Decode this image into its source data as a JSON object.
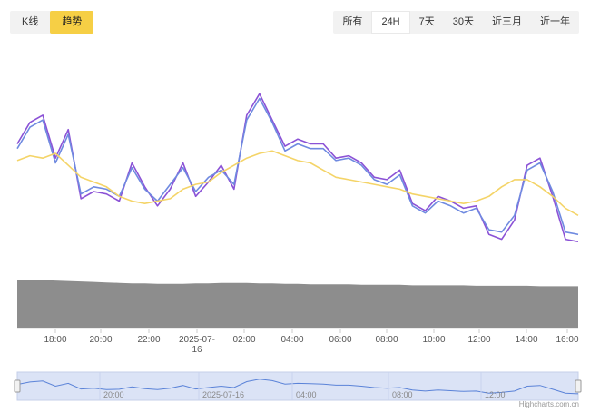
{
  "chart_tabs": [
    "K线",
    "趋势"
  ],
  "active_chart_tab": 1,
  "range_buttons": [
    "所有",
    "24H",
    "7天",
    "30天",
    "近三月",
    "近一年"
  ],
  "active_range": 1,
  "colors": {
    "accent": "#f6cf45",
    "line_purple": "#8b52d6",
    "line_blue": "#6f8ae0",
    "line_yellow": "#f4d468",
    "volume": "#8d8d8d",
    "navigator_fill": "#dbe3f6",
    "navigator_line": "#5b83d8"
  },
  "credit": "Highcharts.com.cn",
  "chart_data": {
    "type": "line",
    "x_axis": {
      "ticks": [
        "18:00",
        "20:00",
        "22:00",
        "2025-07-\n16",
        "02:00",
        "04:00",
        "06:00",
        "08:00",
        "10:00",
        "12:00",
        "14:00",
        "16:00"
      ]
    },
    "series": [
      {
        "color": "#8b52d6",
        "values": [
          62,
          71,
          74,
          56,
          68,
          39,
          42,
          41,
          38,
          54,
          44,
          36,
          43,
          54,
          40,
          46,
          53,
          43,
          74,
          83,
          72,
          61,
          64,
          62,
          62,
          56,
          57,
          54,
          48,
          47,
          51,
          37,
          34,
          40,
          38,
          35,
          36,
          24,
          22,
          30,
          53,
          56,
          40,
          22,
          21
        ]
      },
      {
        "color": "#6f8ae0",
        "values": [
          60,
          69,
          72,
          54,
          66,
          41,
          44,
          43,
          40,
          52,
          43,
          38,
          45,
          52,
          42,
          48,
          51,
          45,
          72,
          81,
          71,
          59,
          62,
          60,
          60,
          55,
          56,
          53,
          47,
          45,
          49,
          36,
          33,
          38,
          36,
          33,
          35,
          26,
          25,
          32,
          51,
          54,
          42,
          25,
          24
        ]
      },
      {
        "color": "#f4d468",
        "values": [
          55,
          57,
          56,
          58,
          53,
          48,
          46,
          44,
          40,
          38,
          37,
          38,
          39,
          43,
          45,
          46,
          50,
          53,
          56,
          58,
          59,
          57,
          55,
          54,
          51,
          48,
          47,
          46,
          45,
          44,
          43,
          41,
          40,
          39,
          38,
          37,
          38,
          40,
          44,
          47,
          47,
          44,
          40,
          35,
          32
        ]
      }
    ]
  },
  "volume_data": {
    "type": "area",
    "values": [
      100,
      100,
      99,
      98,
      97,
      96,
      95,
      94,
      93,
      92,
      92,
      91,
      91,
      91,
      92,
      92,
      93,
      93,
      93,
      92,
      92,
      91,
      91,
      90,
      90,
      90,
      90,
      89,
      89,
      89,
      89,
      88,
      88,
      88,
      88,
      88,
      87,
      87,
      87,
      87,
      87,
      86,
      86,
      86,
      86
    ]
  },
  "navigator": {
    "ticks": [
      "20:00",
      "2025-07-16",
      "04:00",
      "08:00",
      "12:00"
    ],
    "values": [
      55,
      62,
      65,
      50,
      58,
      42,
      44,
      40,
      41,
      48,
      43,
      40,
      44,
      52,
      42,
      46,
      50,
      46,
      63,
      70,
      66,
      56,
      58,
      57,
      56,
      53,
      53,
      50,
      46,
      44,
      46,
      39,
      36,
      39,
      37,
      35,
      36,
      30,
      32,
      36,
      50,
      52,
      41,
      30,
      28
    ]
  }
}
